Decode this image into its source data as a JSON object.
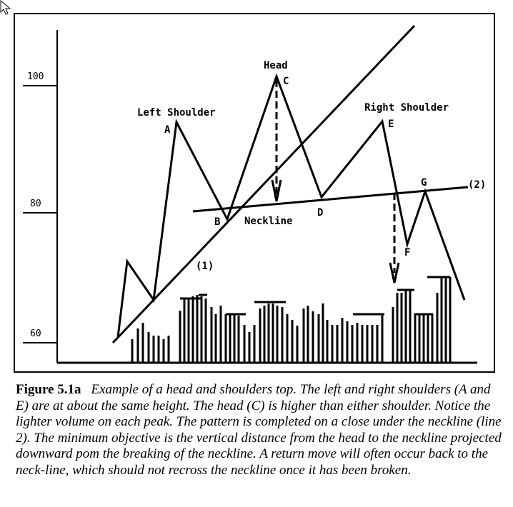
{
  "figure": {
    "y_axis_ticks": [
      "100",
      "80",
      "60"
    ],
    "labels": {
      "left_shoulder": "Left Shoulder",
      "head": "Head",
      "right_shoulder": "Right Shoulder",
      "neckline": "Neckline",
      "point_a": "A",
      "point_b": "B",
      "point_c": "C",
      "point_d": "D",
      "point_e": "E",
      "point_f": "F",
      "point_g": "G",
      "line_1": "(1)",
      "line_2": "(2)"
    },
    "price_path": [
      {
        "t": 0,
        "price": 60
      },
      {
        "t": 1,
        "price": 71
      },
      {
        "t": 2,
        "price": 66
      },
      {
        "t": 3,
        "price": 93
      },
      {
        "t": 4,
        "price": 79
      },
      {
        "t": 5,
        "price": 100
      },
      {
        "t": 6,
        "price": 82
      },
      {
        "t": 7,
        "price": 93
      },
      {
        "t": 8,
        "price": 70
      },
      {
        "t": 9,
        "price": 83
      },
      {
        "t": 10,
        "price": 65
      }
    ]
  },
  "caption": {
    "figure_number": "Figure 5.1a",
    "text": "Example of a head and shoulders top. The left and right shoulders (A and E) are at about the same height. The head (C) is higher than either shoulder. Notice the lighter volume on each peak. The pattern is completed on a close under the neckline (line 2). The minimum objective is the vertical distance from the head to the neckline projected downward pom the breaking of the neckline. A return move will often occur back to the neck-line, which should not recross the neckline once it has been broken."
  }
}
